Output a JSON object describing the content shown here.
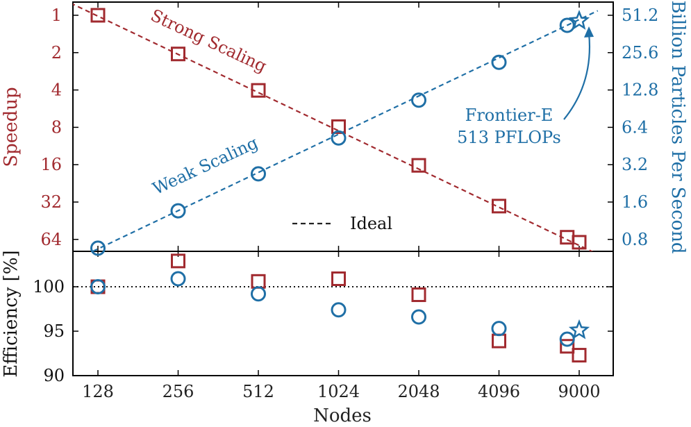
{
  "chart_data": [
    {
      "type": "scatter",
      "panel": "top",
      "x_categories": [
        "128",
        "256",
        "512",
        "1024",
        "2048",
        "4096",
        "9000"
      ],
      "x_nodes": [
        128,
        256,
        512,
        1024,
        2048,
        4096,
        9000
      ],
      "left_axis": {
        "label": "Speedup",
        "scale": "log2-inverted",
        "ticks": [
          1,
          2,
          4,
          8,
          16,
          32,
          64
        ],
        "tick_labels": [
          "1",
          "2",
          "4",
          "8",
          "16",
          "32",
          "64"
        ]
      },
      "right_axis": {
        "label": "Billion Particles Per Second",
        "scale": "log2",
        "ticks": [
          0.8,
          1.6,
          3.2,
          6.4,
          12.8,
          25.6,
          51.2
        ],
        "tick_labels": [
          "0.8",
          "1.6",
          "3.2",
          "6.4",
          "12.8",
          "25.6",
          "51.2"
        ]
      },
      "series": [
        {
          "name": "Strong Scaling",
          "marker": "square",
          "color": "#a12a2f",
          "axis": "left",
          "points": [
            {
              "x": 128,
              "y": 1.0
            },
            {
              "x": 256,
              "y": 2.05
            },
            {
              "x": 512,
              "y": 4.03
            },
            {
              "x": 1024,
              "y": 7.9
            },
            {
              "x": 2048,
              "y": 16.2
            },
            {
              "x": 4096,
              "y": 34.5
            },
            {
              "x": 8000,
              "y": 61.5
            },
            {
              "x": 9000,
              "y": 67.5
            }
          ]
        },
        {
          "name": "Weak Scaling",
          "marker": "circle",
          "color": "#1f6fa6",
          "axis": "right",
          "points": [
            {
              "x": 128,
              "y": 0.68
            },
            {
              "x": 256,
              "y": 1.36
            },
            {
              "x": 512,
              "y": 2.7
            },
            {
              "x": 1024,
              "y": 5.25
            },
            {
              "x": 2048,
              "y": 10.6
            },
            {
              "x": 4096,
              "y": 21.4
            },
            {
              "x": 8000,
              "y": 42.5
            }
          ]
        },
        {
          "name": "Frontier-E",
          "marker": "star",
          "color": "#1f6fa6",
          "axis": "right",
          "points": [
            {
              "x": 9000,
              "y": 46.2
            }
          ]
        }
      ],
      "ideal_lines": [
        {
          "series": "Strong Scaling",
          "color": "#a12a2f"
        },
        {
          "series": "Weak Scaling",
          "color": "#1f6fa6"
        }
      ],
      "legend": [
        {
          "label": "Ideal",
          "style": "dashed",
          "color": "#222222"
        }
      ],
      "annotations": {
        "strong_label": "Strong Scaling",
        "weak_label": "Weak Scaling",
        "frontier_line1": "Frontier-E",
        "frontier_line2": "513 PFLOPs"
      }
    },
    {
      "type": "scatter",
      "panel": "bottom",
      "xlabel": "Nodes",
      "ylabel": "Efficiency [%]",
      "ylim": [
        90,
        104
      ],
      "ticks": [
        90,
        95,
        100
      ],
      "tick_labels": [
        "90",
        "95",
        "100"
      ],
      "reference_line": {
        "y": 100,
        "style": "dotted"
      },
      "series": [
        {
          "name": "Strong Scaling",
          "marker": "square",
          "color": "#a12a2f",
          "points": [
            {
              "x": 128,
              "y": 100.0
            },
            {
              "x": 256,
              "y": 102.9
            },
            {
              "x": 512,
              "y": 100.6
            },
            {
              "x": 1024,
              "y": 100.9
            },
            {
              "x": 2048,
              "y": 99.1
            },
            {
              "x": 4096,
              "y": 93.9
            },
            {
              "x": 8000,
              "y": 93.3
            },
            {
              "x": 9000,
              "y": 92.3
            }
          ]
        },
        {
          "name": "Weak Scaling",
          "marker": "circle",
          "color": "#1f6fa6",
          "points": [
            {
              "x": 128,
              "y": 100.0
            },
            {
              "x": 256,
              "y": 100.9
            },
            {
              "x": 512,
              "y": 99.2
            },
            {
              "x": 1024,
              "y": 97.4
            },
            {
              "x": 2048,
              "y": 96.6
            },
            {
              "x": 4096,
              "y": 95.3
            },
            {
              "x": 8000,
              "y": 94.1
            }
          ]
        },
        {
          "name": "Frontier-E",
          "marker": "star",
          "color": "#1f6fa6",
          "points": [
            {
              "x": 9000,
              "y": 95.1
            }
          ]
        }
      ]
    }
  ]
}
